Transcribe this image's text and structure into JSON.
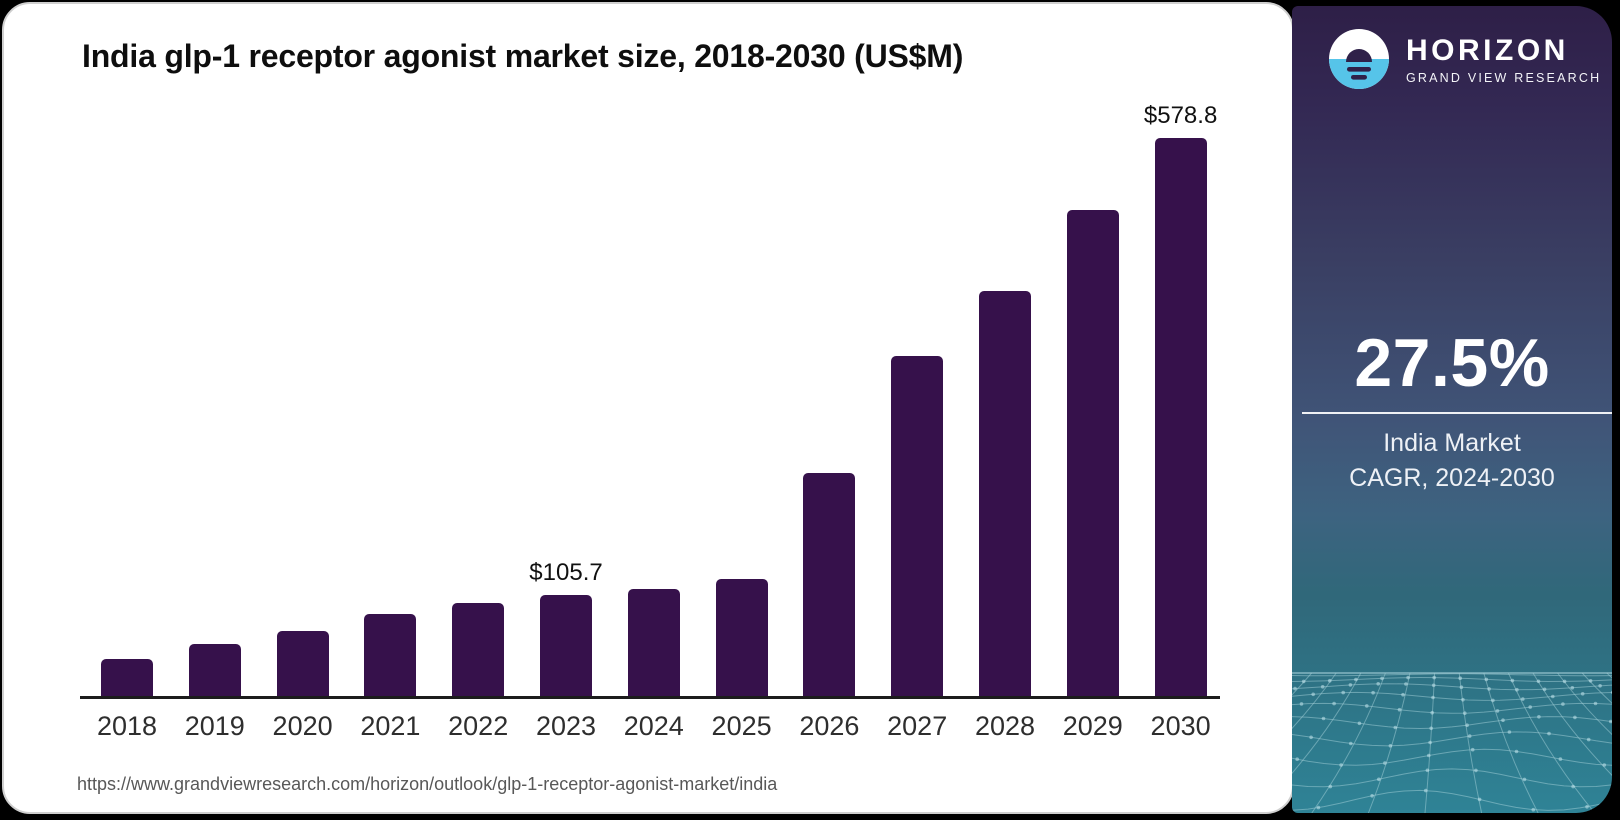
{
  "chart": {
    "title": "India glp-1 receptor agonist market size, 2018-2030 (US$M)"
  },
  "chart_data": {
    "type": "bar",
    "title": "India glp-1 receptor agonist market size, 2018-2030 (US$M)",
    "categories": [
      "2018",
      "2019",
      "2020",
      "2021",
      "2022",
      "2023",
      "2024",
      "2025",
      "2026",
      "2027",
      "2028",
      "2029",
      "2030"
    ],
    "values": [
      39.6,
      55.2,
      68.7,
      86.4,
      97.5,
      105.7,
      112.4,
      121.8,
      232.4,
      353.3,
      420.9,
      504.4,
      578.8
    ],
    "data_labels": {
      "2023": "$105.7",
      "2030": "$578.8"
    },
    "bar_color": "#36114B",
    "axis_color": "#1c1c1c",
    "xlabel": "",
    "ylabel": "",
    "ylim": [
      0,
      600
    ],
    "grid": false,
    "legend": "none"
  },
  "footer": {
    "source_url": "https://www.grandviewresearch.com/horizon/outlook/glp-1-receptor-agonist-market/india"
  },
  "panel": {
    "brand_name": "HORIZON",
    "brand_subtitle": "GRAND VIEW RESEARCH",
    "cagr_value": "27.5%",
    "cagr_caption_line1": "India Market",
    "cagr_caption_line2": "CAGR, 2024-2030",
    "colors": {
      "top": "#2e1f47",
      "bottom": "#2f8396",
      "logo_blue": "#56c4e9",
      "logo_dark": "#2f2149"
    }
  }
}
